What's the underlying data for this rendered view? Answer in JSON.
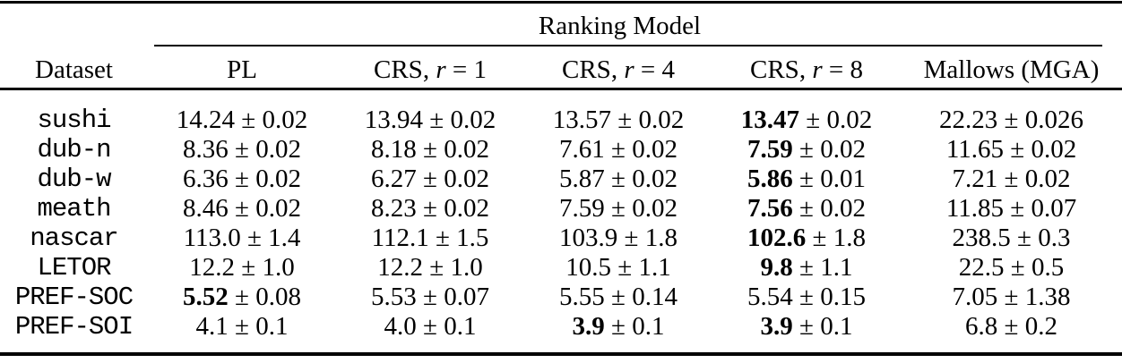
{
  "page": {
    "background_color": "#ffffff",
    "text_color": "#000000"
  },
  "table": {
    "group_header": "Ranking Model",
    "pm": "±",
    "columns": [
      {
        "label": "Dataset"
      },
      {
        "label": "PL"
      },
      {
        "pre": "CRS,",
        "var": "r",
        "post": "= 1"
      },
      {
        "pre": "CRS,",
        "var": "r",
        "post": "= 4"
      },
      {
        "pre": "CRS,",
        "var": "r",
        "post": "= 8"
      },
      {
        "label": "Mallows (MGA)"
      }
    ],
    "rows": [
      {
        "dataset": "sushi",
        "cells": [
          {
            "main": "14.24",
            "err": "0.02",
            "bold": false
          },
          {
            "main": "13.94",
            "err": "0.02",
            "bold": false
          },
          {
            "main": "13.57",
            "err": "0.02",
            "bold": false
          },
          {
            "main": "13.47",
            "err": "0.02",
            "bold": true
          },
          {
            "main": "22.23",
            "err": "0.026",
            "bold": false
          }
        ]
      },
      {
        "dataset": "dub-n",
        "cells": [
          {
            "main": "8.36",
            "err": "0.02",
            "bold": false
          },
          {
            "main": "8.18",
            "err": "0.02",
            "bold": false
          },
          {
            "main": "7.61",
            "err": "0.02",
            "bold": false
          },
          {
            "main": "7.59",
            "err": "0.02",
            "bold": true
          },
          {
            "main": "11.65",
            "err": "0.02",
            "bold": false
          }
        ]
      },
      {
        "dataset": "dub-w",
        "cells": [
          {
            "main": "6.36",
            "err": "0.02",
            "bold": false
          },
          {
            "main": "6.27",
            "err": "0.02",
            "bold": false
          },
          {
            "main": "5.87",
            "err": "0.02",
            "bold": false
          },
          {
            "main": "5.86",
            "err": "0.01",
            "bold": true
          },
          {
            "main": "7.21",
            "err": "0.02",
            "bold": false
          }
        ]
      },
      {
        "dataset": "meath",
        "cells": [
          {
            "main": "8.46",
            "err": "0.02",
            "bold": false
          },
          {
            "main": "8.23",
            "err": "0.02",
            "bold": false
          },
          {
            "main": "7.59",
            "err": "0.02",
            "bold": false
          },
          {
            "main": "7.56",
            "err": "0.02",
            "bold": true
          },
          {
            "main": "11.85",
            "err": "0.07",
            "bold": false
          }
        ]
      },
      {
        "dataset": "nascar",
        "cells": [
          {
            "main": "113.0",
            "err": "1.4",
            "bold": false
          },
          {
            "main": "112.1",
            "err": "1.5",
            "bold": false
          },
          {
            "main": "103.9",
            "err": "1.8",
            "bold": false
          },
          {
            "main": "102.6",
            "err": "1.8",
            "bold": true
          },
          {
            "main": "238.5",
            "err": "0.3",
            "bold": false
          }
        ]
      },
      {
        "dataset": "LETOR",
        "cells": [
          {
            "main": "12.2",
            "err": "1.0",
            "bold": false
          },
          {
            "main": "12.2",
            "err": "1.0",
            "bold": false
          },
          {
            "main": "10.5",
            "err": "1.1",
            "bold": false
          },
          {
            "main": "9.8",
            "err": "1.1",
            "bold": true
          },
          {
            "main": "22.5",
            "err": "0.5",
            "bold": false
          }
        ]
      },
      {
        "dataset": "PREF-SOC",
        "cells": [
          {
            "main": "5.52",
            "err": "0.08",
            "bold": true
          },
          {
            "main": "5.53",
            "err": "0.07",
            "bold": false
          },
          {
            "main": "5.55",
            "err": "0.14",
            "bold": false
          },
          {
            "main": "5.54",
            "err": "0.15",
            "bold": false
          },
          {
            "main": "7.05",
            "err": "1.38",
            "bold": false
          }
        ]
      },
      {
        "dataset": "PREF-SOI",
        "cells": [
          {
            "main": "4.1",
            "err": "0.1",
            "bold": false
          },
          {
            "main": "4.0",
            "err": "0.1",
            "bold": false
          },
          {
            "main": "3.9",
            "err": "0.1",
            "bold": true
          },
          {
            "main": "3.9",
            "err": "0.1",
            "bold": true
          },
          {
            "main": "6.8",
            "err": "0.2",
            "bold": false
          }
        ]
      }
    ]
  }
}
